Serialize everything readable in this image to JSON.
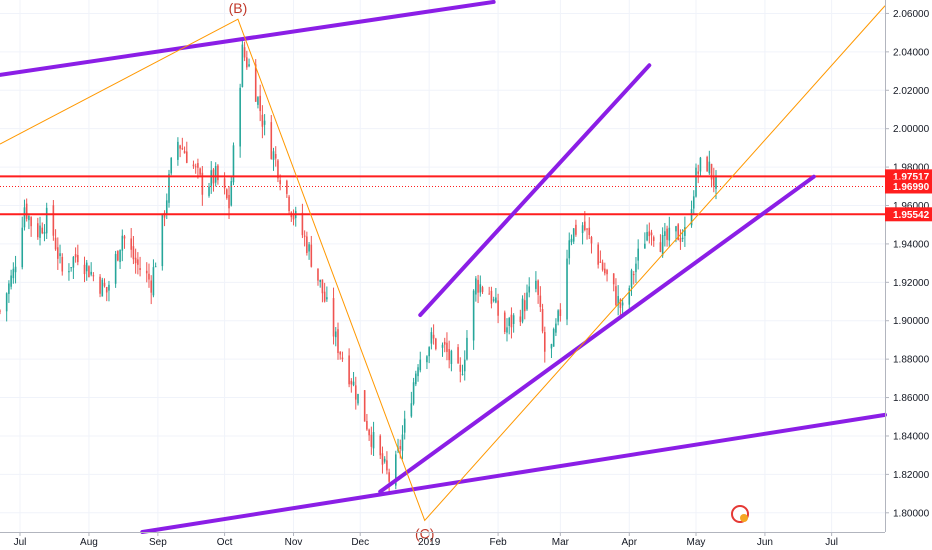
{
  "chart_data": {
    "type": "candlestick",
    "y_axis": {
      "range": [
        1.79,
        2.067
      ],
      "ticks": [
        "1.80000",
        "1.82000",
        "1.84000",
        "1.86000",
        "1.88000",
        "1.90000",
        "1.92000",
        "1.94000",
        "1.96000",
        "1.98000",
        "2.00000",
        "2.02000",
        "2.04000",
        "2.06000"
      ],
      "tick_values": [
        1.8,
        1.82,
        1.84,
        1.86,
        1.88,
        1.9,
        1.92,
        1.94,
        1.96,
        1.98,
        2.0,
        2.02,
        2.04,
        2.06
      ]
    },
    "x_axis": {
      "range": [
        "2018-06-22",
        "2019-07-25"
      ],
      "ticks": [
        {
          "label": "Jul",
          "date": "2018-07-01"
        },
        {
          "label": "Aug",
          "date": "2018-08-01"
        },
        {
          "label": "Sep",
          "date": "2018-09-01"
        },
        {
          "label": "Oct",
          "date": "2018-10-01"
        },
        {
          "label": "Nov",
          "date": "2018-11-01"
        },
        {
          "label": "Dec",
          "date": "2018-12-01"
        },
        {
          "label": "2019",
          "date": "2019-01-01"
        },
        {
          "label": "Feb",
          "date": "2019-02-01"
        },
        {
          "label": "Mar",
          "date": "2019-03-01"
        },
        {
          "label": "Apr",
          "date": "2019-04-01"
        },
        {
          "label": "May",
          "date": "2019-05-01"
        },
        {
          "label": "Jun",
          "date": "2019-06-01"
        },
        {
          "label": "Jul",
          "date": "2019-07-01"
        }
      ]
    },
    "price_path": [
      [
        "2018-06-22",
        1.905
      ],
      [
        "2018-06-28",
        1.925
      ],
      [
        "2018-07-03",
        1.96
      ],
      [
        "2018-07-08",
        1.945
      ],
      [
        "2018-07-14",
        1.955
      ],
      [
        "2018-07-20",
        1.925
      ],
      [
        "2018-07-27",
        1.935
      ],
      [
        "2018-08-02",
        1.925
      ],
      [
        "2018-08-09",
        1.915
      ],
      [
        "2018-08-16",
        1.945
      ],
      [
        "2018-08-22",
        1.93
      ],
      [
        "2018-08-29",
        1.92
      ],
      [
        "2018-09-03",
        1.95
      ],
      [
        "2018-09-09",
        1.995
      ],
      [
        "2018-09-15",
        1.985
      ],
      [
        "2018-09-21",
        1.97
      ],
      [
        "2018-09-27",
        1.975
      ],
      [
        "2018-10-03",
        1.96
      ],
      [
        "2018-10-09",
        2.04
      ],
      [
        "2018-10-13",
        2.03
      ],
      [
        "2018-10-19",
        2.0
      ],
      [
        "2018-10-25",
        1.98
      ],
      [
        "2018-11-01",
        1.955
      ],
      [
        "2018-11-07",
        1.94
      ],
      [
        "2018-11-14",
        1.915
      ],
      [
        "2018-11-20",
        1.89
      ],
      [
        "2018-11-27",
        1.87
      ],
      [
        "2018-12-03",
        1.85
      ],
      [
        "2018-12-09",
        1.83
      ],
      [
        "2018-12-15",
        1.815
      ],
      [
        "2018-12-21",
        1.845
      ],
      [
        "2018-12-27",
        1.88
      ],
      [
        "2019-01-02",
        1.89
      ],
      [
        "2019-01-08",
        1.885
      ],
      [
        "2019-01-15",
        1.87
      ],
      [
        "2019-01-22",
        1.92
      ],
      [
        "2019-01-28",
        1.915
      ],
      [
        "2019-02-04",
        1.895
      ],
      [
        "2019-02-11",
        1.905
      ],
      [
        "2019-02-18",
        1.92
      ],
      [
        "2019-02-23",
        1.875
      ],
      [
        "2019-03-01",
        1.905
      ],
      [
        "2019-03-05",
        1.945
      ],
      [
        "2019-03-11",
        1.95
      ],
      [
        "2019-03-17",
        1.935
      ],
      [
        "2019-03-23",
        1.92
      ],
      [
        "2019-03-29",
        1.905
      ],
      [
        "2019-04-04",
        1.93
      ],
      [
        "2019-04-10",
        1.95
      ],
      [
        "2019-04-16",
        1.94
      ],
      [
        "2019-04-22",
        1.945
      ],
      [
        "2019-04-26",
        1.945
      ],
      [
        "2019-05-01",
        1.975
      ],
      [
        "2019-05-05",
        1.985
      ],
      [
        "2019-05-10",
        1.97
      ]
    ],
    "horizontal_lines": [
      {
        "label": "1.97517",
        "value": 1.97517,
        "style": "solid",
        "color": "#ff1e1e"
      },
      {
        "label": "1.96990",
        "value": 1.9699,
        "style": "dotted",
        "color": "#ff1e1e"
      },
      {
        "label": "1.95542",
        "value": 1.95542,
        "style": "solid",
        "color": "#ff1e1e"
      }
    ],
    "trendlines": [
      {
        "from": [
          "2018-06-22",
          2.028
        ],
        "to": [
          "2019-01-30",
          2.066
        ]
      },
      {
        "from": [
          "2018-08-25",
          1.79
        ],
        "to": [
          "2019-07-25",
          1.851
        ]
      },
      {
        "from": [
          "2018-12-10",
          1.811
        ],
        "to": [
          "2019-06-23",
          1.975
        ]
      },
      {
        "from": [
          "2018-12-28",
          1.903
        ],
        "to": [
          "2019-04-10",
          2.033
        ]
      }
    ],
    "abc_path": {
      "points": [
        [
          "2018-06-22",
          1.992
        ],
        [
          "2018-10-07",
          2.057
        ],
        [
          "2018-12-30",
          1.796
        ],
        [
          "2019-07-25",
          2.064
        ]
      ],
      "labels": [
        "(B)",
        "(C)"
      ]
    },
    "colors": {
      "up_candle": "#26a69a",
      "down_candle": "#ef5350",
      "trendline": "#8b1ee6",
      "wave_line": "#ff9800",
      "support_resistance": "#ff1e1e",
      "wave_label": "#c0392b"
    }
  }
}
